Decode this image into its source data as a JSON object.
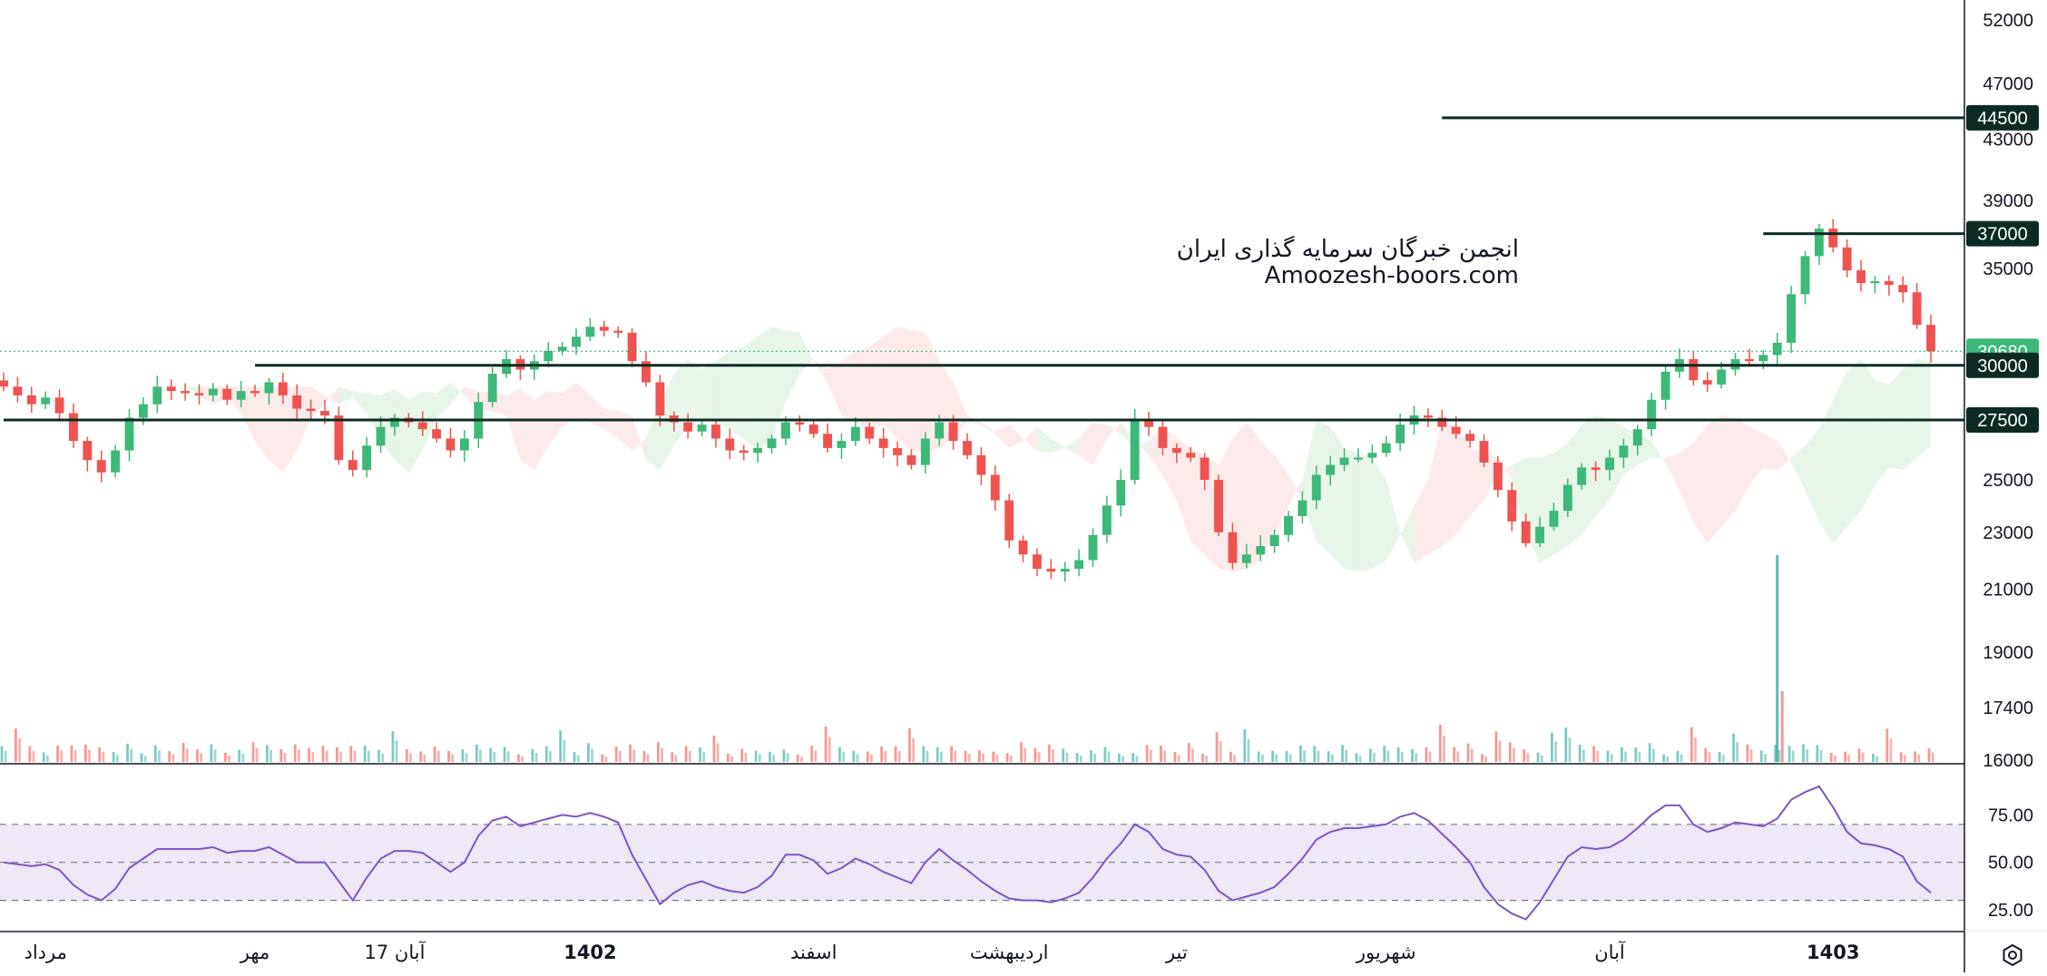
{
  "watermark": {
    "line1": "انجمن خبرگان سرمایه گذاری ایران",
    "line2": "Amoozesh-boors.com"
  },
  "colors": {
    "up": "#26a69a",
    "up_candle": "#3cb878",
    "down": "#ef5350",
    "level_line": "#0d2b24",
    "last_price_bg": "#3cb878",
    "rsi_line": "#7e57c2",
    "rsi_band": "#ede7f6",
    "cloud_green": "#e8f5e9",
    "cloud_red": "#fdeaea"
  },
  "settings_icon": "gear-icon",
  "chart_data": [
    {
      "type": "candlestick",
      "title": "",
      "y_scale": "log",
      "ylim": [
        15900,
        53000
      ],
      "y_ticks": [
        52000,
        47000,
        43000,
        39000,
        35000,
        25000,
        23000,
        21000,
        19000,
        17400,
        16000
      ],
      "levels": [
        {
          "value": 44500,
          "label": "44500",
          "from_period": 103
        },
        {
          "value": 37000,
          "label": "37000",
          "from_period": 126
        },
        {
          "value": 30000,
          "label": "30000",
          "from_period": 18
        },
        {
          "value": 27500,
          "label": "27500",
          "from_period": 0
        }
      ],
      "last_price": {
        "value": 30680,
        "label": "30680"
      },
      "x_labels": [
        {
          "label": "مرداد",
          "period": 3,
          "bold": false
        },
        {
          "label": "مهر",
          "period": 18,
          "bold": false
        },
        {
          "label": "17 آبان",
          "period": 28,
          "bold": false
        },
        {
          "label": "1402",
          "period": 42,
          "bold": true
        },
        {
          "label": "اسفند",
          "period": 58,
          "bold": false
        },
        {
          "label": "اردیبهشت",
          "period": 72,
          "bold": false
        },
        {
          "label": "تیر",
          "period": 84,
          "bold": false
        },
        {
          "label": "شهریور",
          "period": 99,
          "bold": false
        },
        {
          "label": "آبان",
          "period": 115,
          "bold": false
        },
        {
          "label": "1403",
          "period": 131,
          "bold": true
        }
      ],
      "price_close": [
        29000,
        28600,
        28200,
        28500,
        27800,
        26600,
        25800,
        25300,
        26200,
        27600,
        28200,
        29000,
        28800,
        28700,
        28600,
        28900,
        28400,
        28800,
        28700,
        29200,
        28600,
        28000,
        27900,
        27700,
        25800,
        25400,
        26400,
        27200,
        27600,
        27400,
        27100,
        26700,
        26200,
        26700,
        28300,
        29600,
        30300,
        29800,
        30200,
        30700,
        30900,
        31400,
        31900,
        31700,
        31600,
        30200,
        29200,
        27700,
        27400,
        27000,
        27300,
        26700,
        26200,
        26100,
        26300,
        26700,
        27400,
        27300,
        26900,
        26300,
        26600,
        27200,
        26700,
        26300,
        26000,
        25600,
        26700,
        27400,
        26600,
        26000,
        25200,
        24200,
        22700,
        22200,
        21700,
        21600,
        21700,
        22000,
        22900,
        24000,
        25000,
        27500,
        27200,
        26300,
        26100,
        25900,
        25000,
        23000,
        21900,
        22200,
        22500,
        22900,
        23600,
        24200,
        25200,
        25600,
        25900,
        25900,
        26100,
        26500,
        27300,
        27700,
        27600,
        27200,
        26900,
        26600,
        25700,
        24600,
        23400,
        22600,
        23200,
        23800,
        24800,
        25500,
        25400,
        25900,
        26400,
        27100,
        28400,
        29700,
        30300,
        29300,
        29100,
        29800,
        30300,
        30200,
        30500,
        31100,
        33600,
        35700,
        37300,
        36200,
        34900,
        34200,
        34300,
        34100,
        33700,
        32000,
        30680
      ],
      "rsi": {
        "levels": [
          70,
          50,
          30
        ],
        "band": [
          30,
          70
        ],
        "ticks": [
          75,
          50,
          25
        ],
        "ylim": [
          15,
          100
        ],
        "values": [
          50,
          49,
          48,
          49,
          46,
          38,
          33,
          30,
          36,
          47,
          52,
          57,
          57,
          57,
          57,
          58,
          55,
          56,
          56,
          58,
          54,
          50,
          50,
          50,
          40,
          30,
          42,
          52,
          56,
          56,
          55,
          50,
          45,
          50,
          64,
          72,
          74,
          69,
          71,
          73,
          75,
          74,
          76,
          74,
          71,
          54,
          41,
          28,
          34,
          38,
          40,
          37,
          35,
          34,
          37,
          43,
          54,
          54,
          51,
          44,
          47,
          52,
          49,
          45,
          42,
          39,
          50,
          57,
          51,
          46,
          40,
          35,
          31,
          30,
          30,
          29,
          31,
          34,
          42,
          52,
          60,
          70,
          66,
          57,
          54,
          53,
          46,
          35,
          30,
          32,
          34,
          37,
          44,
          52,
          62,
          66,
          68,
          68,
          69,
          70,
          74,
          76,
          72,
          65,
          58,
          50,
          37,
          28,
          23,
          20,
          29,
          41,
          53,
          58,
          57,
          58,
          62,
          68,
          75,
          80,
          80,
          70,
          66,
          68,
          71,
          70,
          69,
          73,
          83,
          87,
          90,
          79,
          66,
          60,
          59,
          57,
          53,
          40,
          34
        ]
      },
      "volume_spike": {
        "period": 127,
        "label": ""
      }
    }
  ]
}
